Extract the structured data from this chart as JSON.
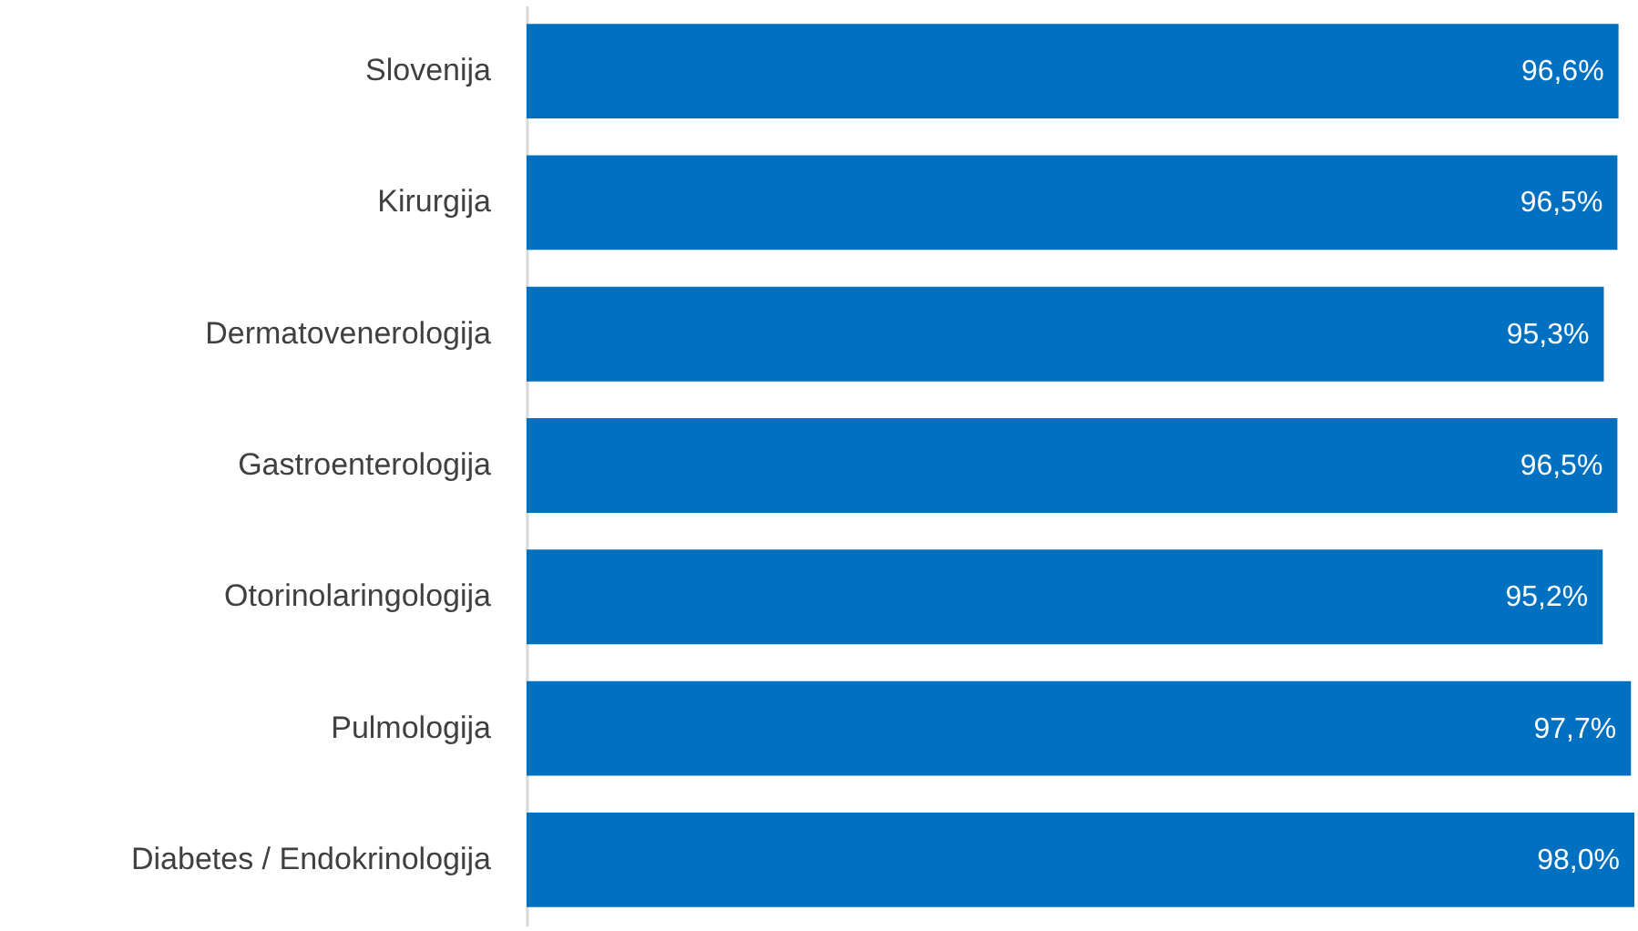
{
  "chart_data": {
    "type": "bar",
    "orientation": "horizontal",
    "categories": [
      "Slovenija",
      "Kirurgija",
      "Dermatovenerologija",
      "Gastroenterologija",
      "Otorinolaringologija",
      "Pulmologija",
      "Diabetes / Endokrinologija"
    ],
    "values": [
      96.6,
      96.5,
      95.3,
      96.5,
      95.2,
      97.7,
      98.0
    ],
    "value_labels": [
      "96,6%",
      "96,5%",
      "95,3%",
      "96,5%",
      "95,2%",
      "97,7%",
      "98,0%"
    ],
    "color": "#0070c0"
  }
}
